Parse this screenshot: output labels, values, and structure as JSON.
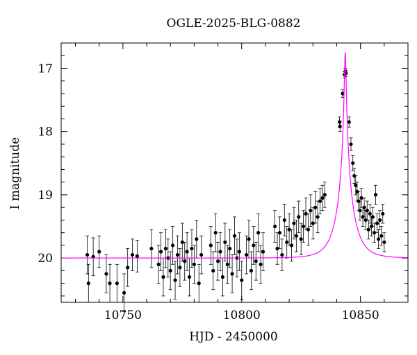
{
  "chart_data": {
    "type": "scatter",
    "title": "OGLE-2025-BLG-0882",
    "xlabel": "HJD - 2450000",
    "ylabel": "I magnitude",
    "xlim": [
      10724,
      10870
    ],
    "ylim": [
      20.7,
      16.6
    ],
    "y_inverted": true,
    "grid": false,
    "x_ticks": {
      "major": [
        10750,
        10800,
        10850
      ],
      "major_labels": [
        "10750",
        "10800",
        "10850"
      ],
      "minor_step": 10
    },
    "y_ticks": {
      "major": [
        17,
        18,
        19,
        20
      ],
      "major_labels": [
        "17",
        "18",
        "19",
        "20"
      ],
      "minor_step": 0.2
    },
    "colors": {
      "points": "#000000",
      "model": "#ff00ff"
    },
    "model": {
      "name": "",
      "description": "magenta single-lens microlensing model curve",
      "t0": 10843.6,
      "tE": 6.5,
      "u0": 0.05,
      "baseline_mag": 20.0
    },
    "series": [
      {
        "kind": "points_with_error_bars",
        "note": "x = HJD - 2450000, y = I magnitude, yerr = half-length of error bar in mag",
        "points": [
          [
            10735,
            19.95,
            0.3
          ],
          [
            10735.5,
            20.4,
            0.3
          ],
          [
            10737.5,
            19.98,
            0.3
          ],
          [
            10740,
            19.9,
            0.25
          ],
          [
            10743,
            20.25,
            0.3
          ],
          [
            10744.5,
            20.4,
            0.3
          ],
          [
            10747.5,
            20.4,
            0.3
          ],
          [
            10750.5,
            20.55,
            0.3
          ],
          [
            10752,
            20.15,
            0.3
          ],
          [
            10754,
            19.95,
            0.25
          ],
          [
            10756,
            19.97,
            0.25
          ],
          [
            10762,
            19.85,
            0.3
          ],
          [
            10765,
            20.1,
            0.3
          ],
          [
            10766,
            19.9,
            0.3
          ],
          [
            10767,
            20.3,
            0.3
          ],
          [
            10768,
            19.85,
            0.3
          ],
          [
            10769,
            20.0,
            0.3
          ],
          [
            10770,
            20.2,
            0.3
          ],
          [
            10771,
            19.8,
            0.3
          ],
          [
            10772,
            20.35,
            0.3
          ],
          [
            10773,
            19.95,
            0.3
          ],
          [
            10774,
            20.15,
            0.3
          ],
          [
            10775,
            19.75,
            0.3
          ],
          [
            10776,
            20.05,
            0.3
          ],
          [
            10777,
            19.9,
            0.3
          ],
          [
            10778,
            20.3,
            0.3
          ],
          [
            10779,
            19.85,
            0.3
          ],
          [
            10780,
            20.1,
            0.3
          ],
          [
            10781,
            19.7,
            0.3
          ],
          [
            10782,
            20.4,
            0.3
          ],
          [
            10783,
            19.95,
            0.3
          ],
          [
            10787,
            19.8,
            0.3
          ],
          [
            10788,
            20.2,
            0.3
          ],
          [
            10789,
            19.6,
            0.3
          ],
          [
            10790,
            20.05,
            0.3
          ],
          [
            10791,
            19.9,
            0.3
          ],
          [
            10792,
            20.3,
            0.3
          ],
          [
            10793,
            19.75,
            0.3
          ],
          [
            10794,
            20.1,
            0.3
          ],
          [
            10795,
            19.85,
            0.3
          ],
          [
            10796,
            20.25,
            0.3
          ],
          [
            10797,
            19.65,
            0.3
          ],
          [
            10798,
            20.0,
            0.3
          ],
          [
            10799,
            19.9,
            0.3
          ],
          [
            10800,
            20.35,
            0.3
          ],
          [
            10802,
            19.95,
            0.3
          ],
          [
            10803,
            19.7,
            0.3
          ],
          [
            10804,
            20.2,
            0.3
          ],
          [
            10805,
            19.8,
            0.3
          ],
          [
            10806,
            20.05,
            0.3
          ],
          [
            10807,
            19.6,
            0.3
          ],
          [
            10808,
            20.1,
            0.3
          ],
          [
            10809,
            19.9,
            0.3
          ],
          [
            10814,
            19.5,
            0.25
          ],
          [
            10815,
            19.85,
            0.25
          ],
          [
            10816,
            19.6,
            0.25
          ],
          [
            10817,
            19.95,
            0.25
          ],
          [
            10818,
            19.4,
            0.25
          ],
          [
            10819,
            19.75,
            0.25
          ],
          [
            10820,
            19.55,
            0.25
          ],
          [
            10821,
            19.8,
            0.25
          ],
          [
            10822,
            19.45,
            0.25
          ],
          [
            10823,
            19.65,
            0.25
          ],
          [
            10824,
            19.35,
            0.25
          ],
          [
            10825,
            19.7,
            0.25
          ],
          [
            10826,
            19.5,
            0.25
          ],
          [
            10827,
            19.3,
            0.25
          ],
          [
            10828,
            19.55,
            0.25
          ],
          [
            10829,
            19.25,
            0.25
          ],
          [
            10830,
            19.45,
            0.25
          ],
          [
            10831,
            19.2,
            0.25
          ],
          [
            10832,
            19.35,
            0.25
          ],
          [
            10833,
            19.1,
            0.2
          ],
          [
            10834,
            19.05,
            0.2
          ],
          [
            10835,
            19.0,
            0.2
          ],
          [
            10841.2,
            17.85,
            0.08
          ],
          [
            10841.4,
            17.92,
            0.08
          ],
          [
            10842.5,
            17.4,
            0.06
          ],
          [
            10843.3,
            17.1,
            0.05
          ],
          [
            10843.6,
            17.05,
            0.05
          ],
          [
            10843.9,
            17.08,
            0.05
          ],
          [
            10845.2,
            17.85,
            0.08
          ],
          [
            10846.0,
            18.2,
            0.1
          ],
          [
            10846.8,
            18.5,
            0.12
          ],
          [
            10847.4,
            18.7,
            0.12
          ],
          [
            10848.0,
            18.85,
            0.15
          ],
          [
            10848.6,
            18.95,
            0.15
          ],
          [
            10849.2,
            19.1,
            0.15
          ],
          [
            10849.8,
            19.25,
            0.15
          ],
          [
            10850.4,
            19.05,
            0.15
          ],
          [
            10851.0,
            19.35,
            0.15
          ],
          [
            10851.6,
            19.2,
            0.15
          ],
          [
            10852.2,
            19.4,
            0.15
          ],
          [
            10852.8,
            19.25,
            0.15
          ],
          [
            10853.4,
            19.55,
            0.15
          ],
          [
            10854.0,
            19.3,
            0.15
          ],
          [
            10854.6,
            19.5,
            0.15
          ],
          [
            10855.2,
            19.35,
            0.15
          ],
          [
            10855.8,
            19.6,
            0.15
          ],
          [
            10856.4,
            19.0,
            0.15
          ],
          [
            10857.0,
            19.45,
            0.15
          ],
          [
            10857.6,
            19.7,
            0.15
          ],
          [
            10858.2,
            19.4,
            0.15
          ],
          [
            10858.8,
            19.65,
            0.15
          ],
          [
            10859.4,
            19.3,
            0.15
          ],
          [
            10860.0,
            19.75,
            0.15
          ]
        ]
      }
    ]
  }
}
